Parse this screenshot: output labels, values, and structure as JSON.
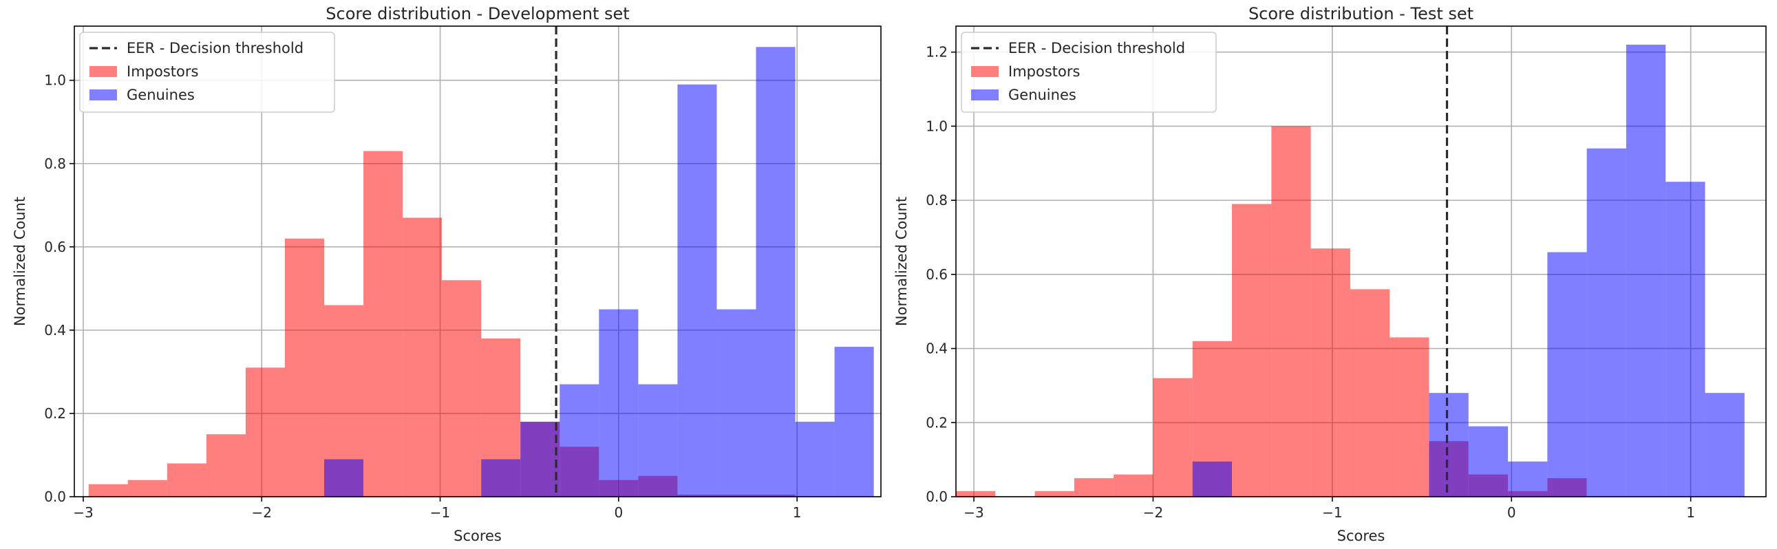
{
  "chart_data": [
    {
      "type": "bar",
      "title": "Score distribution - Development set",
      "xlabel": "Scores",
      "ylabel": "Normalized Count",
      "xlim": [
        -3.05,
        1.47
      ],
      "ylim": [
        0,
        1.13
      ],
      "xticks": [
        -3,
        -2,
        -1,
        0,
        1
      ],
      "xtick_labels": [
        "−3",
        "−2",
        "−1",
        "0",
        "1"
      ],
      "yticks": [
        0.0,
        0.2,
        0.4,
        0.6,
        0.8,
        1.0
      ],
      "ytick_labels": [
        "0.0",
        "0.2",
        "0.4",
        "0.6",
        "0.8",
        "1.0"
      ],
      "grid": true,
      "legend_position": "top-left",
      "threshold": {
        "name": "EER - Decision threshold",
        "x": -0.35
      },
      "series": [
        {
          "name": "Impostors",
          "color": "#ff0000",
          "bin_edges": [
            -2.97,
            -2.75,
            -2.53,
            -2.31,
            -2.09,
            -1.87,
            -1.65,
            -1.43,
            -1.21,
            -0.99,
            -0.77,
            -0.55,
            -0.33,
            -0.11,
            0.11,
            0.33,
            0.55,
            0.77,
            0.99
          ],
          "values": [
            0.03,
            0.04,
            0.08,
            0.15,
            0.31,
            0.62,
            0.46,
            0.83,
            0.67,
            0.52,
            0.38,
            0.18,
            0.12,
            0.04,
            0.05,
            0.005,
            0.005,
            0.005
          ]
        },
        {
          "name": "Genuines",
          "color": "#0000ff",
          "bin_edges": [
            -1.65,
            -1.43,
            -1.21,
            -0.99,
            -0.77,
            -0.55,
            -0.33,
            -0.11,
            0.11,
            0.33,
            0.55,
            0.77,
            0.99,
            1.21,
            1.43
          ],
          "values": [
            0.09,
            0,
            0,
            0,
            0.09,
            0.18,
            0.27,
            0.45,
            0.27,
            0.99,
            0.45,
            1.08,
            0.18,
            0.36
          ]
        }
      ]
    },
    {
      "type": "bar",
      "title": "Score distribution - Test set",
      "xlabel": "Scores",
      "ylabel": "Normalized Count",
      "xlim": [
        -3.1,
        1.42
      ],
      "ylim": [
        0,
        1.27
      ],
      "xticks": [
        -3,
        -2,
        -1,
        0,
        1
      ],
      "xtick_labels": [
        "−3",
        "−2",
        "−1",
        "0",
        "1"
      ],
      "yticks": [
        0.0,
        0.2,
        0.4,
        0.6,
        0.8,
        1.0,
        1.2
      ],
      "ytick_labels": [
        "0.0",
        "0.2",
        "0.4",
        "0.6",
        "0.8",
        "1.0",
        "1.2"
      ],
      "grid": true,
      "legend_position": "top-left",
      "threshold": {
        "name": "EER - Decision threshold",
        "x": -0.36
      },
      "series": [
        {
          "name": "Impostors",
          "color": "#ff0000",
          "bin_edges": [
            -3.1,
            -2.88,
            -2.66,
            -2.44,
            -2.22,
            -2.0,
            -1.78,
            -1.56,
            -1.34,
            -1.12,
            -0.9,
            -0.68,
            -0.46,
            -0.24,
            -0.02,
            0.2,
            0.42
          ],
          "values": [
            0.015,
            0,
            0.015,
            0.05,
            0.06,
            0.32,
            0.42,
            0.79,
            1.0,
            0.67,
            0.56,
            0.43,
            0.15,
            0.06,
            0.015,
            0.05
          ]
        },
        {
          "name": "Genuines",
          "color": "#0000ff",
          "bin_edges": [
            -1.78,
            -1.56,
            -1.34,
            -1.12,
            -0.9,
            -0.68,
            -0.46,
            -0.24,
            -0.02,
            0.2,
            0.42,
            0.64,
            0.86,
            1.08,
            1.3
          ],
          "values": [
            0.095,
            0,
            0,
            0,
            0,
            0,
            0.28,
            0.19,
            0.095,
            0.66,
            0.94,
            1.22,
            0.85,
            0.28
          ]
        }
      ]
    }
  ]
}
